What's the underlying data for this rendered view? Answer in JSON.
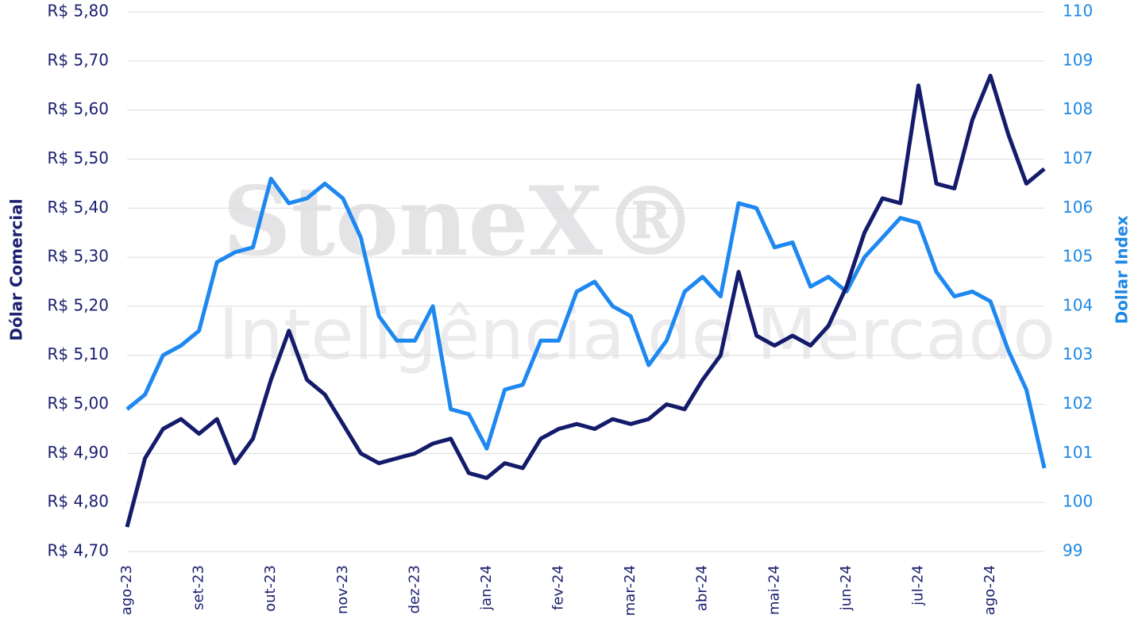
{
  "chart_data": {
    "type": "line",
    "watermark": [
      "StoneX®",
      "Inteligência de Mercado"
    ],
    "ylabel": "Dólar Comercial",
    "y2label": "Dollar Index",
    "categories": [
      "ago-23",
      null,
      null,
      null,
      "set-23",
      null,
      null,
      null,
      "out-23",
      null,
      null,
      null,
      "nov-23",
      null,
      null,
      null,
      "dez-23",
      null,
      null,
      null,
      "jan-24",
      null,
      null,
      null,
      "fev-24",
      null,
      null,
      null,
      "mar-24",
      null,
      null,
      null,
      "abr-24",
      null,
      null,
      null,
      "mai-24",
      null,
      null,
      null,
      "jun-24",
      null,
      null,
      null,
      "jul-24",
      null,
      null,
      null,
      "ago-24",
      null,
      null,
      null
    ],
    "series": [
      {
        "name": "Dólar Comercial",
        "color": "#141b6b",
        "axis": "y",
        "values": [
          4.75,
          4.89,
          4.95,
          4.97,
          4.94,
          4.97,
          4.88,
          4.93,
          5.05,
          5.15,
          5.05,
          5.02,
          4.96,
          4.9,
          4.88,
          4.89,
          4.9,
          4.92,
          4.93,
          4.86,
          4.85,
          4.88,
          4.87,
          4.93,
          4.95,
          4.96,
          4.95,
          4.97,
          4.96,
          4.97,
          5.0,
          4.99,
          5.05,
          5.1,
          5.27,
          5.14,
          5.12,
          5.14,
          5.12,
          5.16,
          5.24,
          5.35,
          5.42,
          5.41,
          5.65,
          5.45,
          5.44,
          5.58,
          5.67,
          5.55,
          5.45,
          5.48
        ]
      },
      {
        "name": "Dollar Index",
        "color": "#1e88f0",
        "axis": "y2",
        "values": [
          101.9,
          102.2,
          103.0,
          103.2,
          103.5,
          104.9,
          105.1,
          105.2,
          106.6,
          106.1,
          106.2,
          106.5,
          106.2,
          105.4,
          103.8,
          103.3,
          103.3,
          104.0,
          101.9,
          101.8,
          101.1,
          102.3,
          102.4,
          103.3,
          103.3,
          104.3,
          104.5,
          104.0,
          103.8,
          102.8,
          103.3,
          104.3,
          104.6,
          104.2,
          106.1,
          106.0,
          105.2,
          105.3,
          104.4,
          104.6,
          104.3,
          105.0,
          105.4,
          105.8,
          105.7,
          104.7,
          104.2,
          104.3,
          104.1,
          103.1,
          102.3,
          100.7
        ]
      }
    ],
    "ylim": [
      4.7,
      5.8
    ],
    "yticks": [
      {
        "value": 4.7,
        "label": "R$ 4,70"
      },
      {
        "value": 4.8,
        "label": "R$ 4,80"
      },
      {
        "value": 4.9,
        "label": "R$ 4,90"
      },
      {
        "value": 5.0,
        "label": "R$ 5,00"
      },
      {
        "value": 5.1,
        "label": "R$ 5,10"
      },
      {
        "value": 5.2,
        "label": "R$ 5,20"
      },
      {
        "value": 5.3,
        "label": "R$ 5,30"
      },
      {
        "value": 5.4,
        "label": "R$ 5,40"
      },
      {
        "value": 5.5,
        "label": "R$ 5,50"
      },
      {
        "value": 5.6,
        "label": "R$ 5,60"
      },
      {
        "value": 5.7,
        "label": "R$ 5,70"
      },
      {
        "value": 5.8,
        "label": "R$ 5,80"
      }
    ],
    "y2lim": [
      99,
      110
    ],
    "y2ticks": [
      99,
      100,
      101,
      102,
      103,
      104,
      105,
      106,
      107,
      108,
      109,
      110
    ],
    "grid": true
  }
}
